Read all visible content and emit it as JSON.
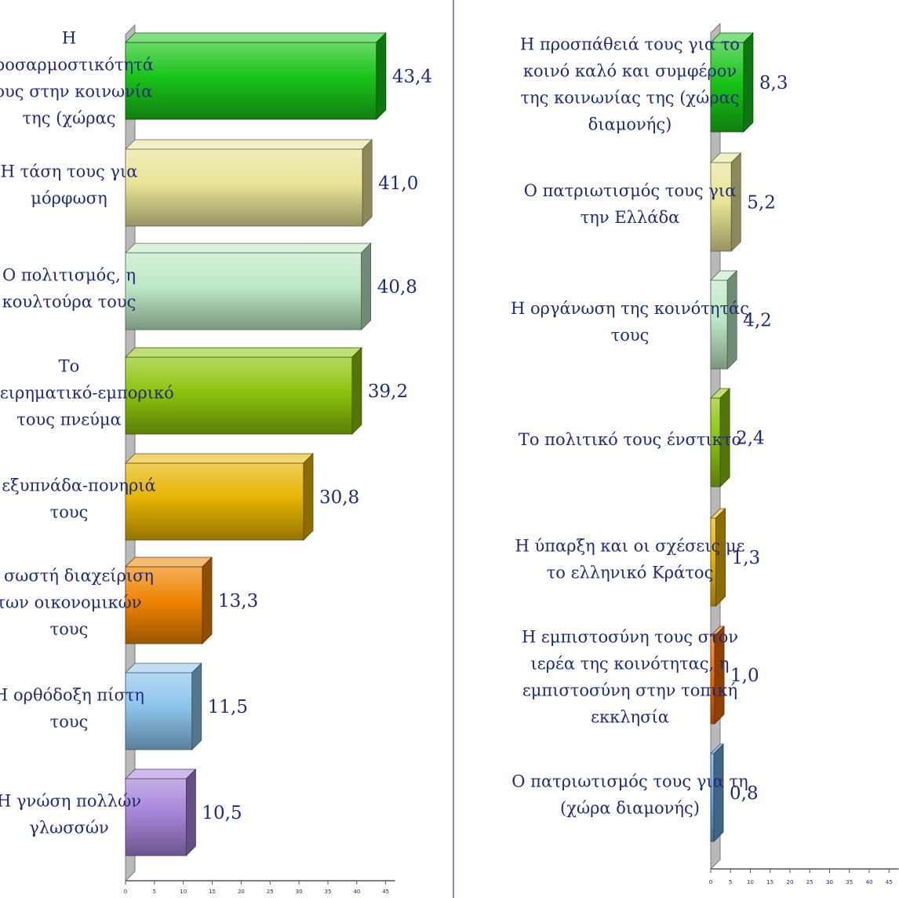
{
  "chart_data": [
    {
      "type": "bar",
      "orientation": "horizontal",
      "categories": [
        "Η προσαρμοστικότητά τους στην κοινωνία της (χώρας",
        "Η τάση τους για μόρφωση",
        "Ο πολιτισμός, η κουλτούρα τους",
        "Το επιχειρηματικό-εμπορικό τους πνεύμα",
        "Η εξυπνάδα-πονηριά τους",
        "Η σωστή διαχείριση των οικονομικών τους",
        "Η ορθόδοξη πίστη τους",
        "Η γνώση πολλών γλωσσών"
      ],
      "values": [
        43.4,
        41.0,
        40.8,
        39.2,
        30.8,
        13.3,
        11.5,
        10.5
      ],
      "value_labels": [
        "43,4",
        "41,0",
        "40,8",
        "39,2",
        "30,8",
        "13,3",
        "11,5",
        "10,5"
      ],
      "bar_colors": [
        "#18c418",
        "#e8e496",
        "#bde8c4",
        "#8cc40c",
        "#e6b400",
        "#ee8400",
        "#8cc4ec",
        "#a684d8"
      ],
      "xlim": [
        0,
        45
      ],
      "xticks": [
        "0",
        "5",
        "10",
        "15",
        "20",
        "25",
        "30",
        "35",
        "40",
        "45"
      ],
      "grid": false
    },
    {
      "type": "bar",
      "orientation": "horizontal",
      "categories": [
        "Η προσπάθειά τους για το κοινό καλό και συμφέρον της κοινωνίας της (χώρας διαμονής)",
        "Ο πατριωτισμός τους για την Ελλάδα",
        "Η οργάνωση της κοινότητάς τους",
        "Το πολιτικό τους ένστικτο",
        "Η ύπαρξη και οι σχέσεις με το ελληνικό Κράτος",
        "Η εμπιστοσύνη τους στον ιερέα της κοινότητας, η εμπιστοσύνη στην τοπική εκκλησία",
        "Ο πατριωτισμός τους για τη (χώρα διαμονής)"
      ],
      "values": [
        8.3,
        5.2,
        4.2,
        2.4,
        1.3,
        1.0,
        0.8
      ],
      "value_labels": [
        "8,3",
        "5,2",
        "4,2",
        "2,4",
        "1,3",
        "1,0",
        "0,8"
      ],
      "bar_colors": [
        "#18c418",
        "#e8e496",
        "#bde8c4",
        "#8cc40c",
        "#e6b400",
        "#ee6a00",
        "#6aa6dc"
      ],
      "xlim": [
        0,
        45
      ],
      "xticks": [
        "0",
        "5",
        "10",
        "15",
        "20",
        "25",
        "30",
        "35",
        "40",
        "45"
      ],
      "grid": false
    }
  ]
}
